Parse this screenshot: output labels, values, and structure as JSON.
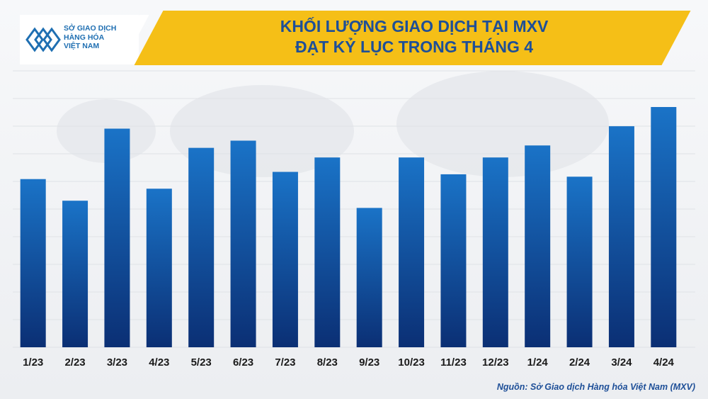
{
  "logo": {
    "lines": [
      "SỞ GIAO DỊCH",
      "HÀNG HÓA",
      "VIỆT NAM"
    ],
    "brand_color": "#1f6fb2"
  },
  "title": {
    "line1": "KHỐI LƯỢNG GIAO DỊCH TẠI MXV",
    "line2": "ĐẠT KỶ LỤC TRONG THÁNG 4",
    "banner_color": "#f5bf17",
    "text_color": "#1e4f98"
  },
  "chart_data": {
    "type": "bar",
    "title": "KHỐI LƯỢNG GIAO DỊCH TẠI MXV ĐẠT KỶ LỤC TRONG THÁNG 4",
    "categories": [
      "1/23",
      "2/23",
      "3/23",
      "4/23",
      "5/23",
      "6/23",
      "7/23",
      "8/23",
      "9/23",
      "10/23",
      "11/23",
      "12/23",
      "1/24",
      "2/24",
      "3/24",
      "4/24"
    ],
    "values": [
      70,
      61,
      91,
      66,
      83,
      86,
      73,
      79,
      58,
      79,
      72,
      79,
      84,
      71,
      92,
      100
    ],
    "ylim": [
      0,
      100
    ],
    "grid": true,
    "legend": "none",
    "bar_color_top": "#1a73c7",
    "bar_color_bottom": "#0b2f74"
  },
  "source": "Nguồn: Sở Giao dịch Hàng hóa Việt Nam (MXV)"
}
